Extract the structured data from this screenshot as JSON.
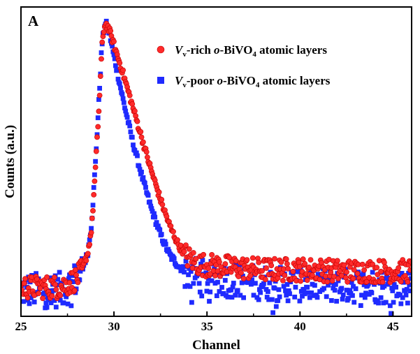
{
  "chart_data": {
    "type": "scatter",
    "panel_label": "A",
    "xlabel": "Channel",
    "ylabel": "Counts (a.u.)",
    "xlim": [
      25,
      46
    ],
    "ylim": [
      0,
      1.06
    ],
    "x_ticks": [
      25,
      30,
      35,
      40,
      45
    ],
    "x_tick_labels": [
      "25",
      "30",
      "35",
      "40",
      "45"
    ],
    "y_ticks": [],
    "grid": false,
    "legend_position": "top-right",
    "series": [
      {
        "name": "Vv-rich o-BiVO4 atomic layers",
        "legend": {
          "italic": "V",
          "sub1": "v",
          "mid": "-rich ",
          "italic2": "o",
          "mid2": "-BiVO",
          "sub2": "4",
          "tail": " atomic layers"
        },
        "color": "#ff2a2a",
        "marker": "circle",
        "x": [
          25.0,
          25.5,
          26.0,
          26.5,
          27.0,
          27.5,
          28.0,
          28.3,
          28.6,
          28.8,
          29.0,
          29.2,
          29.35,
          29.5,
          29.6,
          29.75,
          30.0,
          30.5,
          31.0,
          31.5,
          32.0,
          32.5,
          33.0,
          33.5,
          34.0,
          34.5,
          35.0,
          36.0,
          37.0,
          38.0,
          39.0,
          40.0,
          41.0,
          42.0,
          43.0,
          44.0,
          45.0,
          46.0
        ],
        "y": [
          0.1,
          0.1,
          0.1,
          0.1,
          0.1,
          0.11,
          0.13,
          0.16,
          0.22,
          0.3,
          0.5,
          0.72,
          0.92,
          1.0,
          1.0,
          0.98,
          0.93,
          0.83,
          0.72,
          0.61,
          0.5,
          0.4,
          0.31,
          0.24,
          0.2,
          0.18,
          0.175,
          0.17,
          0.165,
          0.16,
          0.16,
          0.16,
          0.16,
          0.155,
          0.155,
          0.155,
          0.155,
          0.155
        ]
      },
      {
        "name": "Vv-poor o-BiVO4 atomic layers",
        "legend": {
          "italic": "V",
          "sub1": "v",
          "mid": "-poor ",
          "italic2": "o",
          "mid2": "-BiVO",
          "sub2": "4",
          "tail": " atomic layers"
        },
        "color": "#1f2aff",
        "marker": "square",
        "x": [
          25.0,
          25.5,
          26.0,
          26.5,
          27.0,
          27.5,
          28.0,
          28.3,
          28.6,
          28.8,
          29.0,
          29.2,
          29.35,
          29.5,
          29.6,
          29.75,
          30.0,
          30.5,
          31.0,
          31.5,
          32.0,
          32.5,
          33.0,
          33.5,
          34.0,
          34.5,
          35.0,
          36.0,
          37.0,
          38.0,
          39.0,
          40.0,
          41.0,
          42.0,
          43.0,
          44.0,
          45.0,
          46.0
        ],
        "y": [
          0.09,
          0.09,
          0.09,
          0.09,
          0.09,
          0.1,
          0.13,
          0.16,
          0.22,
          0.32,
          0.52,
          0.75,
          0.93,
          1.0,
          1.0,
          0.97,
          0.89,
          0.74,
          0.6,
          0.48,
          0.37,
          0.28,
          0.21,
          0.17,
          0.15,
          0.14,
          0.13,
          0.125,
          0.12,
          0.115,
          0.11,
          0.11,
          0.11,
          0.105,
          0.105,
          0.105,
          0.1,
          0.1
        ]
      }
    ]
  }
}
